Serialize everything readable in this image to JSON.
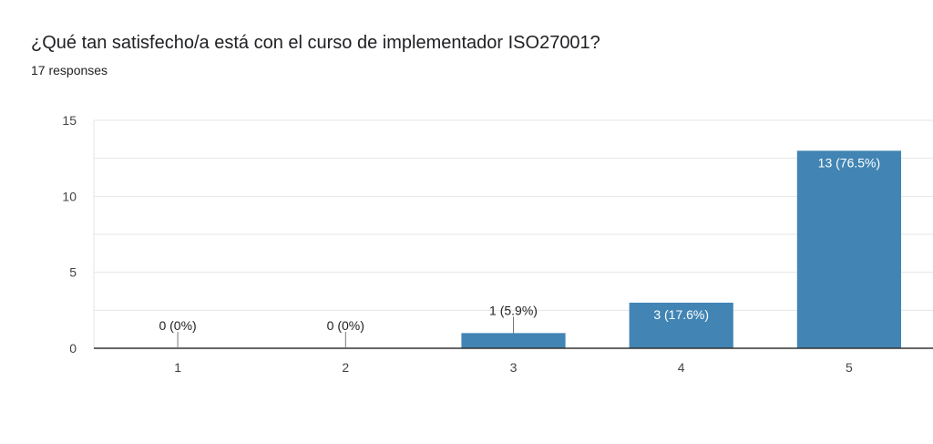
{
  "header": {
    "question": "¿Qué tan satisfecho/a está con el curso de implementador ISO27001?",
    "responses": "17 responses"
  },
  "colors": {
    "bar": "#4285b4",
    "grid": "#e6e6e6",
    "axis": "#333333",
    "label_outside": "#202124",
    "label_inside": "#ffffff"
  },
  "chart_data": {
    "type": "bar",
    "title": "¿Qué tan satisfecho/a está con el curso de implementador ISO27001?",
    "xlabel": "",
    "ylabel": "",
    "categories": [
      "1",
      "2",
      "3",
      "4",
      "5"
    ],
    "values": [
      0,
      0,
      1,
      3,
      13
    ],
    "data_labels": [
      "0 (0%)",
      "0 (0%)",
      "1 (5.9%)",
      "3 (17.6%)",
      "13 (76.5%)"
    ],
    "ylim": [
      0,
      15
    ],
    "yticks": [
      0,
      5,
      10,
      15
    ],
    "grid": true,
    "legend": "none"
  }
}
